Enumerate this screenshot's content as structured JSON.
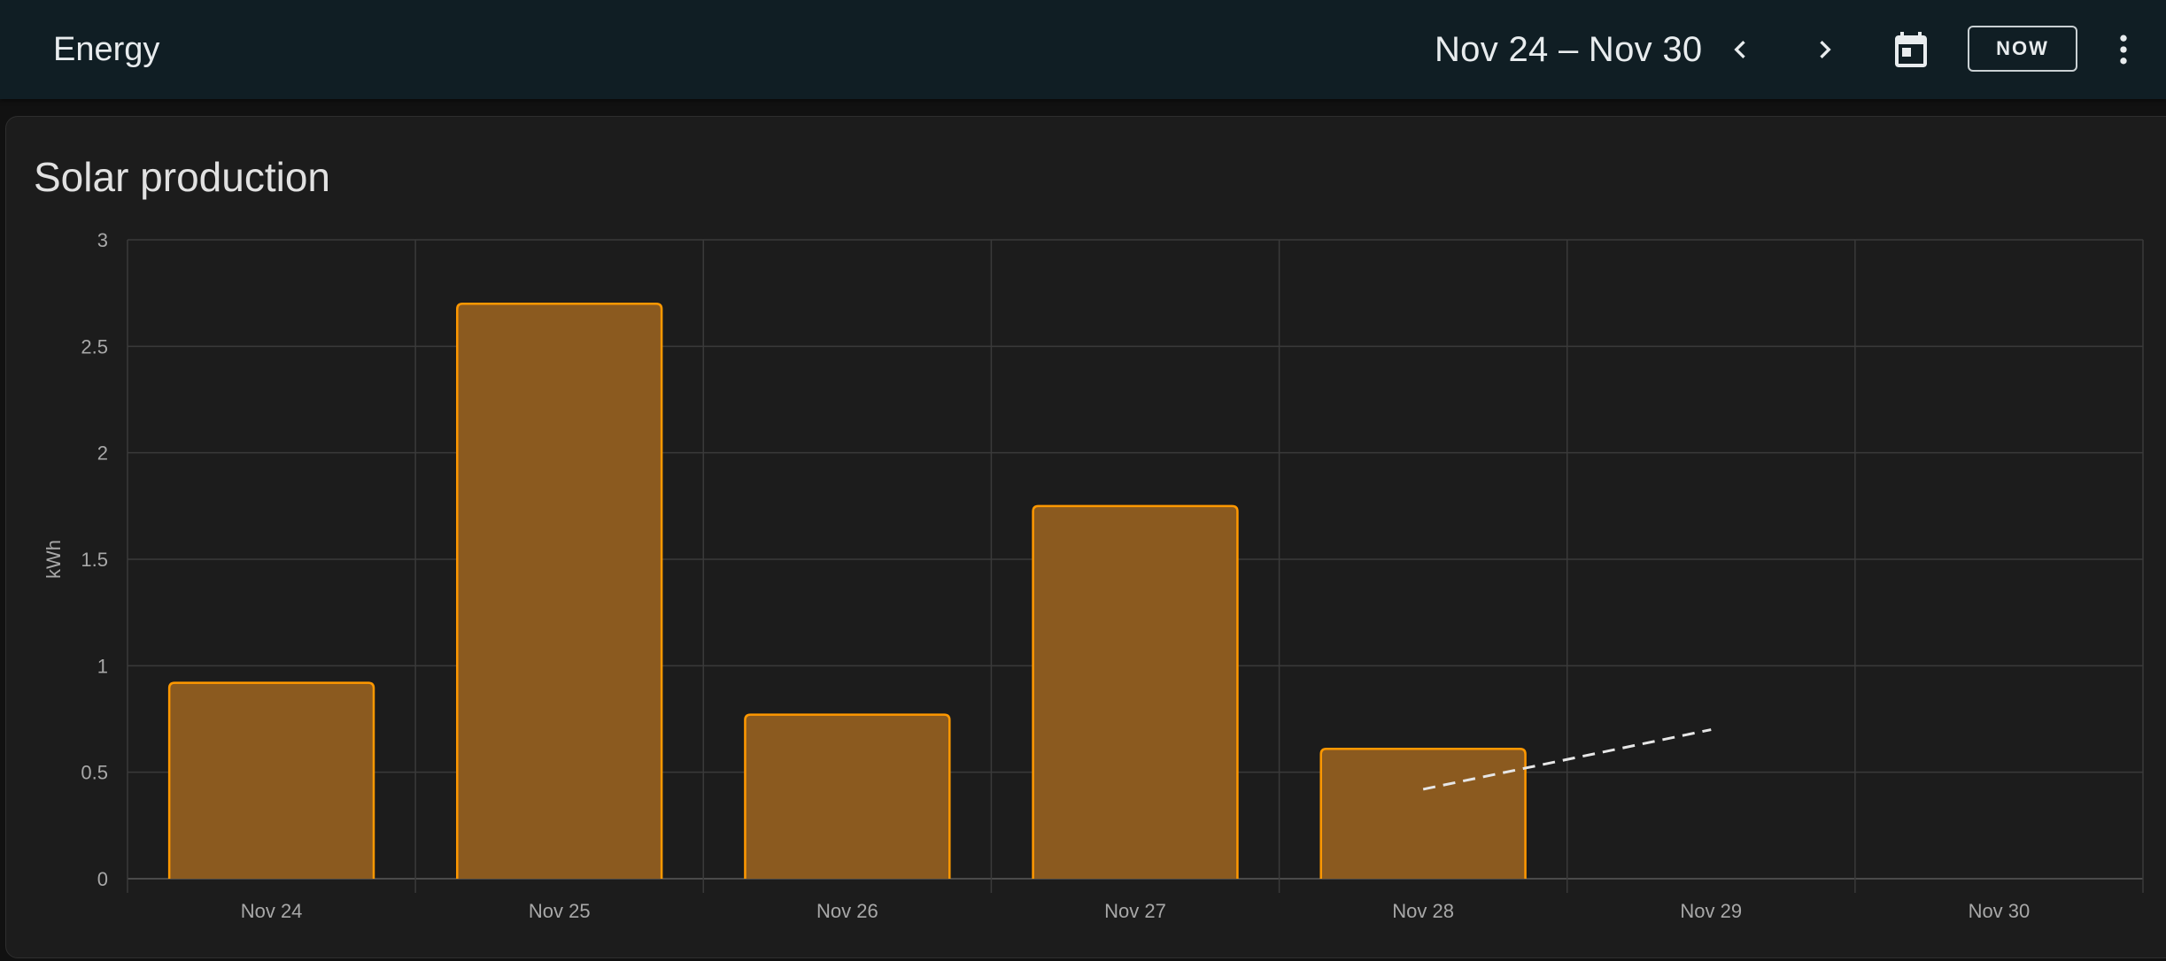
{
  "header": {
    "title": "Energy",
    "date_range": "Nov 24 – Nov 30",
    "now_label": "NOW",
    "icons": {
      "prev": "chevron-left-icon",
      "next": "chevron-right-icon",
      "calendar": "calendar-icon",
      "menu": "more-vertical-icon"
    }
  },
  "card": {
    "title": "Solar production"
  },
  "colors": {
    "bar_fill": "#8b5a1f",
    "bar_stroke": "#ff9800",
    "forecast_line": "#e6e6e6",
    "grid": "#3a3a3a",
    "axis": "#5a5a5a"
  },
  "chart_data": {
    "type": "bar",
    "title": "Solar production",
    "ylabel": "kWh",
    "xlabel": "",
    "categories": [
      "Nov 24",
      "Nov 25",
      "Nov 26",
      "Nov 27",
      "Nov 28",
      "Nov 29",
      "Nov 30"
    ],
    "series": [
      {
        "values": [
          0.92,
          2.7,
          0.77,
          1.75,
          0.61,
          null,
          null
        ]
      }
    ],
    "forecast": {
      "style": "dashed-line",
      "x": [
        "Nov 28",
        "Nov 29"
      ],
      "y": [
        0.42,
        0.7
      ]
    },
    "ylim": [
      0,
      3
    ],
    "yticks": [
      "0",
      "0.5",
      "1",
      "1.5",
      "2",
      "2.5",
      "3"
    ],
    "grid": true,
    "legend": "none"
  }
}
